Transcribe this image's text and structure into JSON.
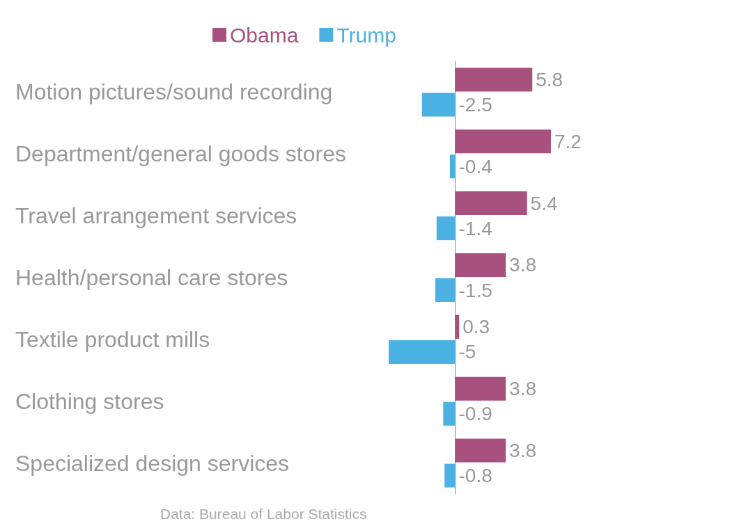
{
  "chart_data": {
    "type": "bar",
    "orientation": "horizontal",
    "categories": [
      "Motion pictures/sound recording",
      "Department/general goods stores",
      "Travel arrangement services",
      "Health/personal care stores",
      "Textile product mills",
      "Clothing stores",
      "Specialized design services"
    ],
    "series": [
      {
        "name": "Obama",
        "color": "#a8517e",
        "values": [
          5.8,
          7.2,
          5.4,
          3.8,
          0.3,
          3.8,
          3.8
        ]
      },
      {
        "name": "Trump",
        "color": "#4bb1e3",
        "values": [
          -2.5,
          -0.4,
          -1.4,
          -1.5,
          -5,
          -0.9,
          -0.8
        ]
      }
    ],
    "data_labels": true,
    "legend": "top",
    "grid": false,
    "annotations": [
      "Data: Bureau of Labor Statistics"
    ]
  }
}
